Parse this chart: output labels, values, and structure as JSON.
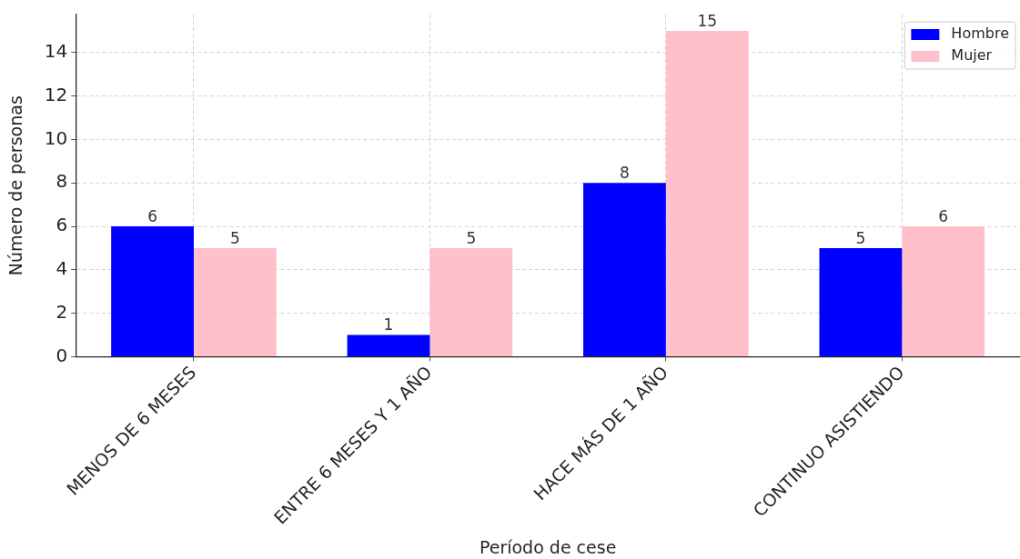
{
  "chart_data": {
    "type": "bar",
    "xlabel": "Período de cese",
    "ylabel": "Número de personas",
    "categories": [
      "MENOS DE 6 MESES",
      "ENTRE 6 MESES Y 1 AÑO",
      "HACE MÁS DE 1 AÑO",
      "CONTINUO ASISTIENDO"
    ],
    "series": [
      {
        "name": "Hombre",
        "color": "#0000ff",
        "values": [
          6,
          1,
          8,
          5
        ]
      },
      {
        "name": "Mujer",
        "color": "#ffc0cb",
        "values": [
          5,
          5,
          15,
          6
        ]
      }
    ],
    "ylim": [
      0,
      15.75
    ],
    "yticks": [
      0,
      2,
      4,
      6,
      8,
      10,
      12,
      14
    ],
    "grid": true,
    "legend": "top right",
    "data_labels": true
  }
}
